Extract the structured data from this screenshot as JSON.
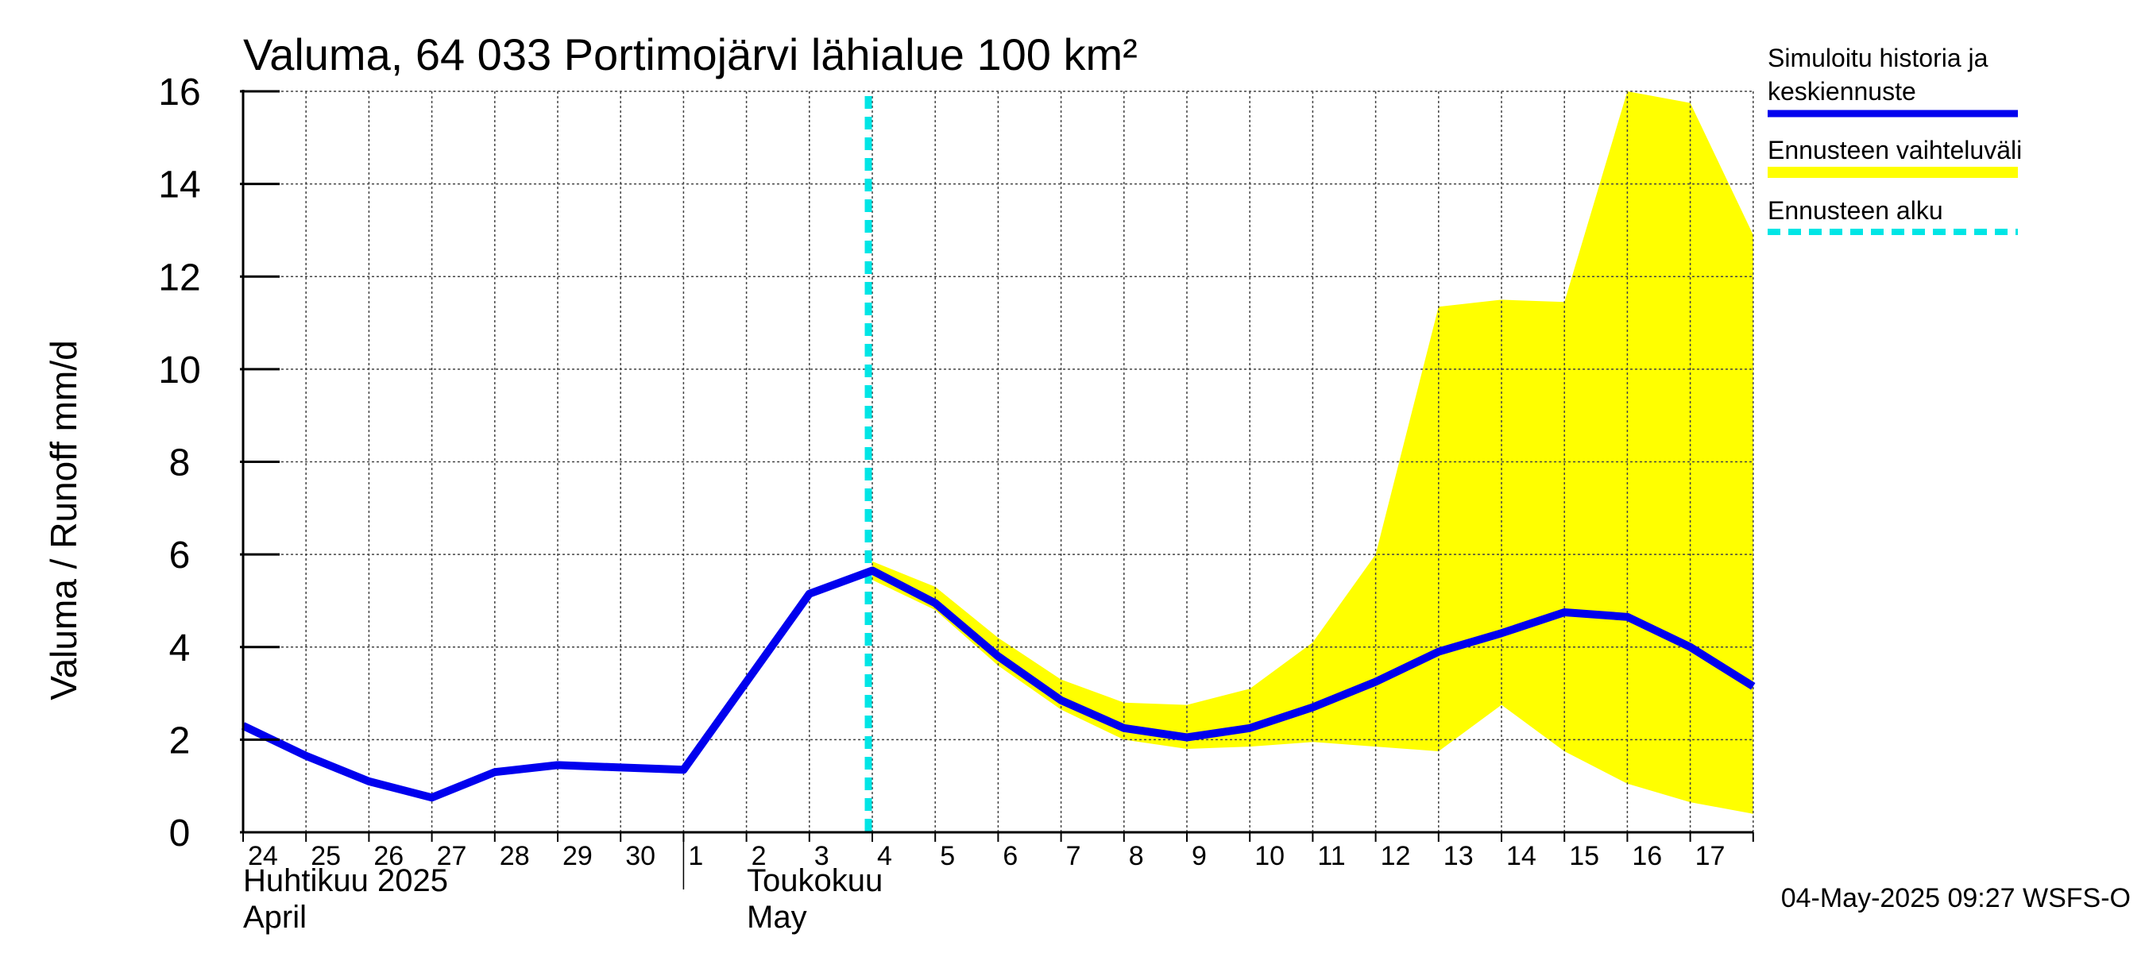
{
  "chart_data": {
    "type": "line",
    "title": "Valuma, 64 033 Portimojärvi lähialue 100 km²",
    "ylabel": "Valuma / Runoff    mm/d",
    "ylim": [
      0,
      16
    ],
    "yticks": [
      0,
      2,
      4,
      6,
      8,
      10,
      12,
      14,
      16
    ],
    "grid": true,
    "legend_position": "right",
    "x_start_date": "2025-04-24",
    "x_end_date": "2025-05-17",
    "x_tick_labels": [
      "24",
      "25",
      "26",
      "27",
      "28",
      "29",
      "30",
      "1",
      "2",
      "3",
      "4",
      "5",
      "6",
      "7",
      "8",
      "9",
      "10",
      "11",
      "12",
      "13",
      "14",
      "15",
      "16",
      "17"
    ],
    "month_labels": [
      {
        "line1": "Huhtikuu  2025",
        "line2": "April"
      },
      {
        "line1": "Toukokuu",
        "line2": "May"
      }
    ],
    "forecast_start": "2025-05-04",
    "series": [
      {
        "name": "Simuloitu historia ja keskiennuste",
        "color": "#0000ee",
        "points": [
          [
            "2025-04-24",
            2.3
          ],
          [
            "2025-04-25",
            1.65
          ],
          [
            "2025-04-26",
            1.1
          ],
          [
            "2025-04-27",
            0.75
          ],
          [
            "2025-04-28",
            1.3
          ],
          [
            "2025-04-29",
            1.45
          ],
          [
            "2025-04-30",
            1.4
          ],
          [
            "2025-05-01",
            1.35
          ],
          [
            "2025-05-02",
            3.25
          ],
          [
            "2025-05-03",
            5.15
          ],
          [
            "2025-05-04",
            5.65
          ],
          [
            "2025-05-05",
            4.95
          ],
          [
            "2025-05-06",
            3.8
          ],
          [
            "2025-05-07",
            2.85
          ],
          [
            "2025-05-08",
            2.25
          ],
          [
            "2025-05-09",
            2.05
          ],
          [
            "2025-05-10",
            2.25
          ],
          [
            "2025-05-11",
            2.7
          ],
          [
            "2025-05-12",
            3.25
          ],
          [
            "2025-05-13",
            3.9
          ],
          [
            "2025-05-14",
            4.3
          ],
          [
            "2025-05-15",
            4.75
          ],
          [
            "2025-05-16",
            4.65
          ],
          [
            "2025-05-17",
            4.0
          ],
          [
            "2025-05-18",
            3.15
          ]
        ]
      },
      {
        "name": "Ennusteen vaihteluväli",
        "color": "#ffff00",
        "type": "band",
        "points": [
          [
            "2025-05-04",
            5.45,
            5.85
          ],
          [
            "2025-05-05",
            4.8,
            5.3
          ],
          [
            "2025-05-06",
            3.6,
            4.2
          ],
          [
            "2025-05-07",
            2.65,
            3.3
          ],
          [
            "2025-05-08",
            2.0,
            2.8
          ],
          [
            "2025-05-09",
            1.8,
            2.75
          ],
          [
            "2025-05-10",
            1.85,
            3.1
          ],
          [
            "2025-05-11",
            1.95,
            4.1
          ],
          [
            "2025-05-12",
            1.85,
            6.0
          ],
          [
            "2025-05-13",
            1.75,
            11.35
          ],
          [
            "2025-05-14",
            2.75,
            11.5
          ],
          [
            "2025-05-15",
            1.75,
            11.45
          ],
          [
            "2025-05-16",
            1.05,
            16.0
          ],
          [
            "2025-05-17",
            0.65,
            15.75
          ],
          [
            "2025-05-18",
            0.4,
            12.9
          ]
        ]
      }
    ],
    "legend": [
      {
        "label_line1": "Simuloitu historia ja",
        "label_line2": "keskiennuste",
        "style": "line",
        "color": "#0000ee"
      },
      {
        "label_line1": "Ennusteen vaihteluväli",
        "label_line2": "",
        "style": "band",
        "color": "#ffff00"
      },
      {
        "label_line1": "Ennusteen alku",
        "label_line2": "",
        "style": "dashed",
        "color": "#00e5e5"
      }
    ]
  },
  "timestamp": "04-May-2025 09:27 WSFS-O"
}
